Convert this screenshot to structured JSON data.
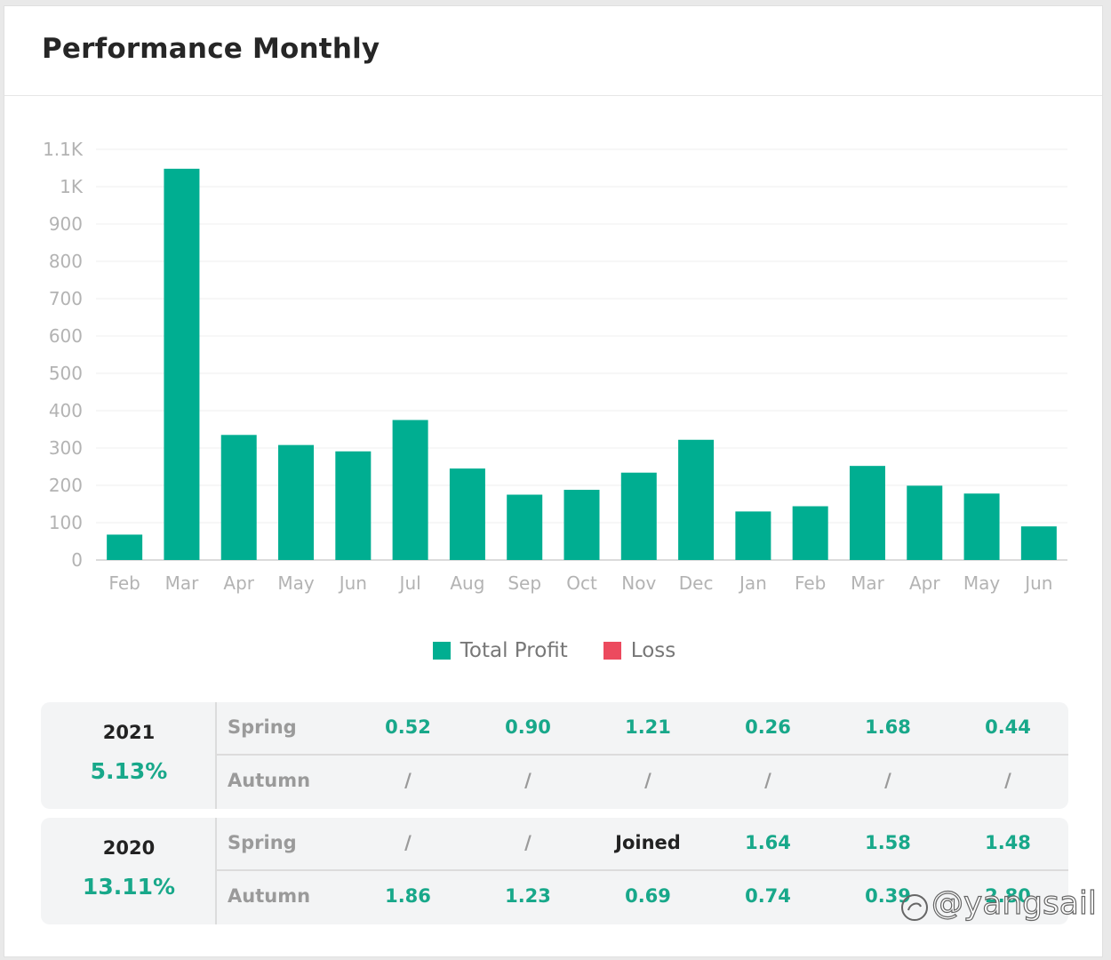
{
  "header": {
    "title": "Performance Monthly"
  },
  "colors": {
    "profit": "#00ae91",
    "loss": "#ec4a5e",
    "accent_text": "#18a88a"
  },
  "chart_data": {
    "type": "bar",
    "categories": [
      "Feb",
      "Mar",
      "Apr",
      "May",
      "Jun",
      "Jul",
      "Aug",
      "Sep",
      "Oct",
      "Nov",
      "Dec",
      "Jan",
      "Feb",
      "Mar",
      "Apr",
      "May",
      "Jun"
    ],
    "series": [
      {
        "name": "Total Profit",
        "color": "#00ae91",
        "values": [
          68,
          1048,
          335,
          308,
          291,
          375,
          245,
          175,
          188,
          234,
          322,
          130,
          144,
          252,
          199,
          178,
          90
        ]
      },
      {
        "name": "Loss",
        "color": "#ec4a5e",
        "values": [
          0,
          0,
          0,
          0,
          0,
          0,
          0,
          0,
          0,
          0,
          0,
          0,
          0,
          0,
          0,
          0,
          0
        ]
      }
    ],
    "y_ticks": [
      "0",
      "100",
      "200",
      "300",
      "400",
      "500",
      "600",
      "700",
      "800",
      "900",
      "1K",
      "1.1K"
    ],
    "ylim": [
      0,
      1100
    ],
    "grid": true,
    "legend_position": "bottom-center",
    "title": "",
    "xlabel": "",
    "ylabel": ""
  },
  "legend": [
    {
      "label": "Total Profit",
      "color": "#00ae91"
    },
    {
      "label": "Loss",
      "color": "#ec4a5e"
    }
  ],
  "performance": [
    {
      "year": "2021",
      "total": "5.13%",
      "spring": {
        "label": "Spring",
        "values": [
          "0.52",
          "0.90",
          "1.21",
          "0.26",
          "1.68",
          "0.44"
        ]
      },
      "autumn": {
        "label": "Autumn",
        "values": [
          "/",
          "/",
          "/",
          "/",
          "/",
          "/"
        ]
      }
    },
    {
      "year": "2020",
      "total": "13.11%",
      "spring": {
        "label": "Spring",
        "values": [
          "/",
          "/",
          "Joined",
          "1.64",
          "1.58",
          "1.48"
        ]
      },
      "autumn": {
        "label": "Autumn",
        "values": [
          "1.86",
          "1.23",
          "0.69",
          "0.74",
          "0.39",
          "2.80"
        ]
      }
    }
  ],
  "watermark": "@yangsail"
}
